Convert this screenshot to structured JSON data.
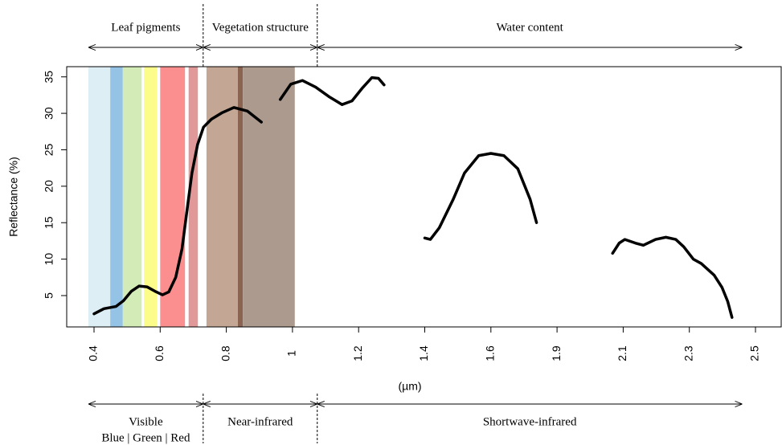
{
  "chart_data": {
    "type": "line",
    "xlabel": "(µm)",
    "ylabel": "Reflectance (%)",
    "xlim": [
      0.32,
      2.58
    ],
    "ylim": [
      0.7,
      36.4
    ],
    "xticks": [
      0.4,
      0.6,
      0.8,
      1,
      1.2,
      1.4,
      1.6,
      1.9,
      2.1,
      2.3,
      2.5
    ],
    "yticks": [
      5,
      10,
      15,
      20,
      25,
      30,
      35
    ],
    "bands": [
      {
        "x": [
          0.383,
          0.449
        ],
        "color": "#deeef5"
      },
      {
        "x": [
          0.449,
          0.487
        ],
        "color": "#95c3e6"
      },
      {
        "x": [
          0.487,
          0.544
        ],
        "color": "#d3ebb6"
      },
      {
        "x": [
          0.551,
          0.591
        ],
        "color": "#fbfc8a"
      },
      {
        "x": [
          0.6,
          0.675
        ],
        "color": "#fb8f8f"
      },
      {
        "x": [
          0.686,
          0.714
        ],
        "color": "#e19898"
      },
      {
        "x": [
          0.74,
          0.835
        ],
        "color": "#c3a693"
      },
      {
        "x": [
          0.835,
          0.85
        ],
        "color": "#8a6450"
      },
      {
        "x": [
          0.85,
          1.007
        ],
        "color": "#ad9a8e"
      }
    ],
    "top_annotations": [
      {
        "label": "Leaf pigments",
        "x": [
          0.383,
          0.73
        ]
      },
      {
        "label": "Vegetation structure",
        "x": [
          0.73,
          1.075
        ]
      },
      {
        "label": "Water content",
        "x": [
          1.075,
          2.46
        ]
      }
    ],
    "bottom_annotations": [
      {
        "label": "Visible",
        "sublabel": "Blue | Green | Red",
        "x": [
          0.383,
          0.73
        ]
      },
      {
        "label": "Near-infrared",
        "x": [
          0.73,
          1.075
        ]
      },
      {
        "label": "Shortwave-infrared",
        "x": [
          1.075,
          2.46
        ]
      }
    ],
    "series": [
      {
        "color": "#000000",
        "x": [
          0.4,
          0.43,
          0.466,
          0.489,
          0.513,
          0.536,
          0.56,
          0.584,
          0.607,
          0.626,
          0.647,
          0.666,
          0.68,
          0.696,
          0.713,
          0.731,
          0.755,
          0.788,
          0.823,
          0.864,
          0.906,
          null,
          0.963,
          0.995,
          1.03,
          1.07,
          1.11,
          1.15,
          1.18,
          1.21,
          1.24,
          1.26,
          1.277,
          null,
          1.4,
          1.417,
          1.444,
          1.486,
          1.52,
          1.563,
          1.6,
          1.659,
          1.722,
          1.778,
          1.807,
          null,
          2.068,
          2.088,
          2.105,
          2.137,
          2.161,
          2.198,
          2.229,
          2.259,
          2.283,
          2.312,
          2.336,
          2.375,
          2.399,
          2.416,
          2.429
        ],
        "values": [
          2.5,
          3.2,
          3.5,
          4.3,
          5.6,
          6.3,
          6.2,
          5.6,
          5.1,
          5.5,
          7.5,
          11.4,
          16.3,
          21.8,
          25.7,
          28.1,
          29.2,
          30.1,
          30.8,
          30.3,
          28.8,
          null,
          31.9,
          34,
          34.5,
          33.6,
          32.3,
          31.2,
          31.7,
          33.4,
          34.9,
          34.8,
          33.9,
          null,
          12.9,
          12.7,
          14.3,
          18.2,
          21.8,
          24.2,
          24.5,
          24.2,
          22.4,
          18.2,
          15.0,
          null,
          10.8,
          12.2,
          12.7,
          12.2,
          11.9,
          12.7,
          13.0,
          12.7,
          11.7,
          10.0,
          9.4,
          7.8,
          6.1,
          4.2,
          2.0
        ]
      }
    ]
  }
}
